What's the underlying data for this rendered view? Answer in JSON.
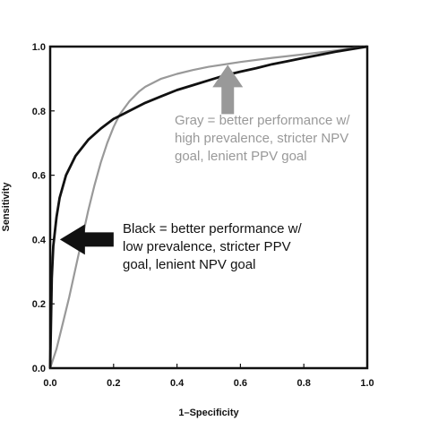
{
  "chart_data": {
    "type": "line",
    "xlabel": "1–Specificity",
    "ylabel": "Sensitivity",
    "xlim": [
      0,
      1
    ],
    "ylim": [
      0,
      1
    ],
    "x_ticks": [
      "0.0",
      "0.2",
      "0.4",
      "0.6",
      "0.8",
      "1.0"
    ],
    "y_ticks": [
      "0.0",
      "0.2",
      "0.4",
      "0.6",
      "0.8",
      "1.0"
    ],
    "grid": false,
    "series": [
      {
        "color": "#111111",
        "x": [
          0.0,
          0.005,
          0.01,
          0.02,
          0.03,
          0.05,
          0.08,
          0.12,
          0.16,
          0.2,
          0.25,
          0.3,
          0.35,
          0.4,
          0.45,
          0.5,
          0.55,
          0.6,
          0.65,
          0.7,
          0.75,
          0.8,
          0.85,
          0.9,
          0.95,
          1.0
        ],
        "y": [
          0.0,
          0.28,
          0.38,
          0.47,
          0.53,
          0.6,
          0.66,
          0.71,
          0.745,
          0.775,
          0.8,
          0.825,
          0.845,
          0.865,
          0.88,
          0.895,
          0.91,
          0.922,
          0.933,
          0.945,
          0.955,
          0.965,
          0.974,
          0.984,
          0.992,
          1.0
        ]
      },
      {
        "color": "#999999",
        "x": [
          0.0,
          0.02,
          0.04,
          0.06,
          0.08,
          0.1,
          0.12,
          0.14,
          0.16,
          0.18,
          0.2,
          0.22,
          0.25,
          0.28,
          0.3,
          0.35,
          0.4,
          0.45,
          0.5,
          0.6,
          0.7,
          0.8,
          0.9,
          1.0
        ],
        "y": [
          0.0,
          0.06,
          0.14,
          0.22,
          0.31,
          0.4,
          0.49,
          0.57,
          0.64,
          0.7,
          0.75,
          0.79,
          0.83,
          0.86,
          0.875,
          0.9,
          0.915,
          0.927,
          0.937,
          0.952,
          0.965,
          0.976,
          0.988,
          1.0
        ]
      }
    ],
    "annotations": [
      {
        "lines": [
          "Gray = better performance w/",
          "high prevalence, stricter NPV",
          "goal, lenient PPV goal"
        ],
        "color": "#999999",
        "arrow_direction": "up",
        "points_to": [
          0.56,
          0.96
        ]
      },
      {
        "lines": [
          "Black = better performance w/",
          "low prevalence, stricter PPV",
          "goal, lenient NPV goal"
        ],
        "color": "#111111",
        "arrow_direction": "left",
        "points_to": [
          0.025,
          0.4
        ]
      }
    ]
  }
}
